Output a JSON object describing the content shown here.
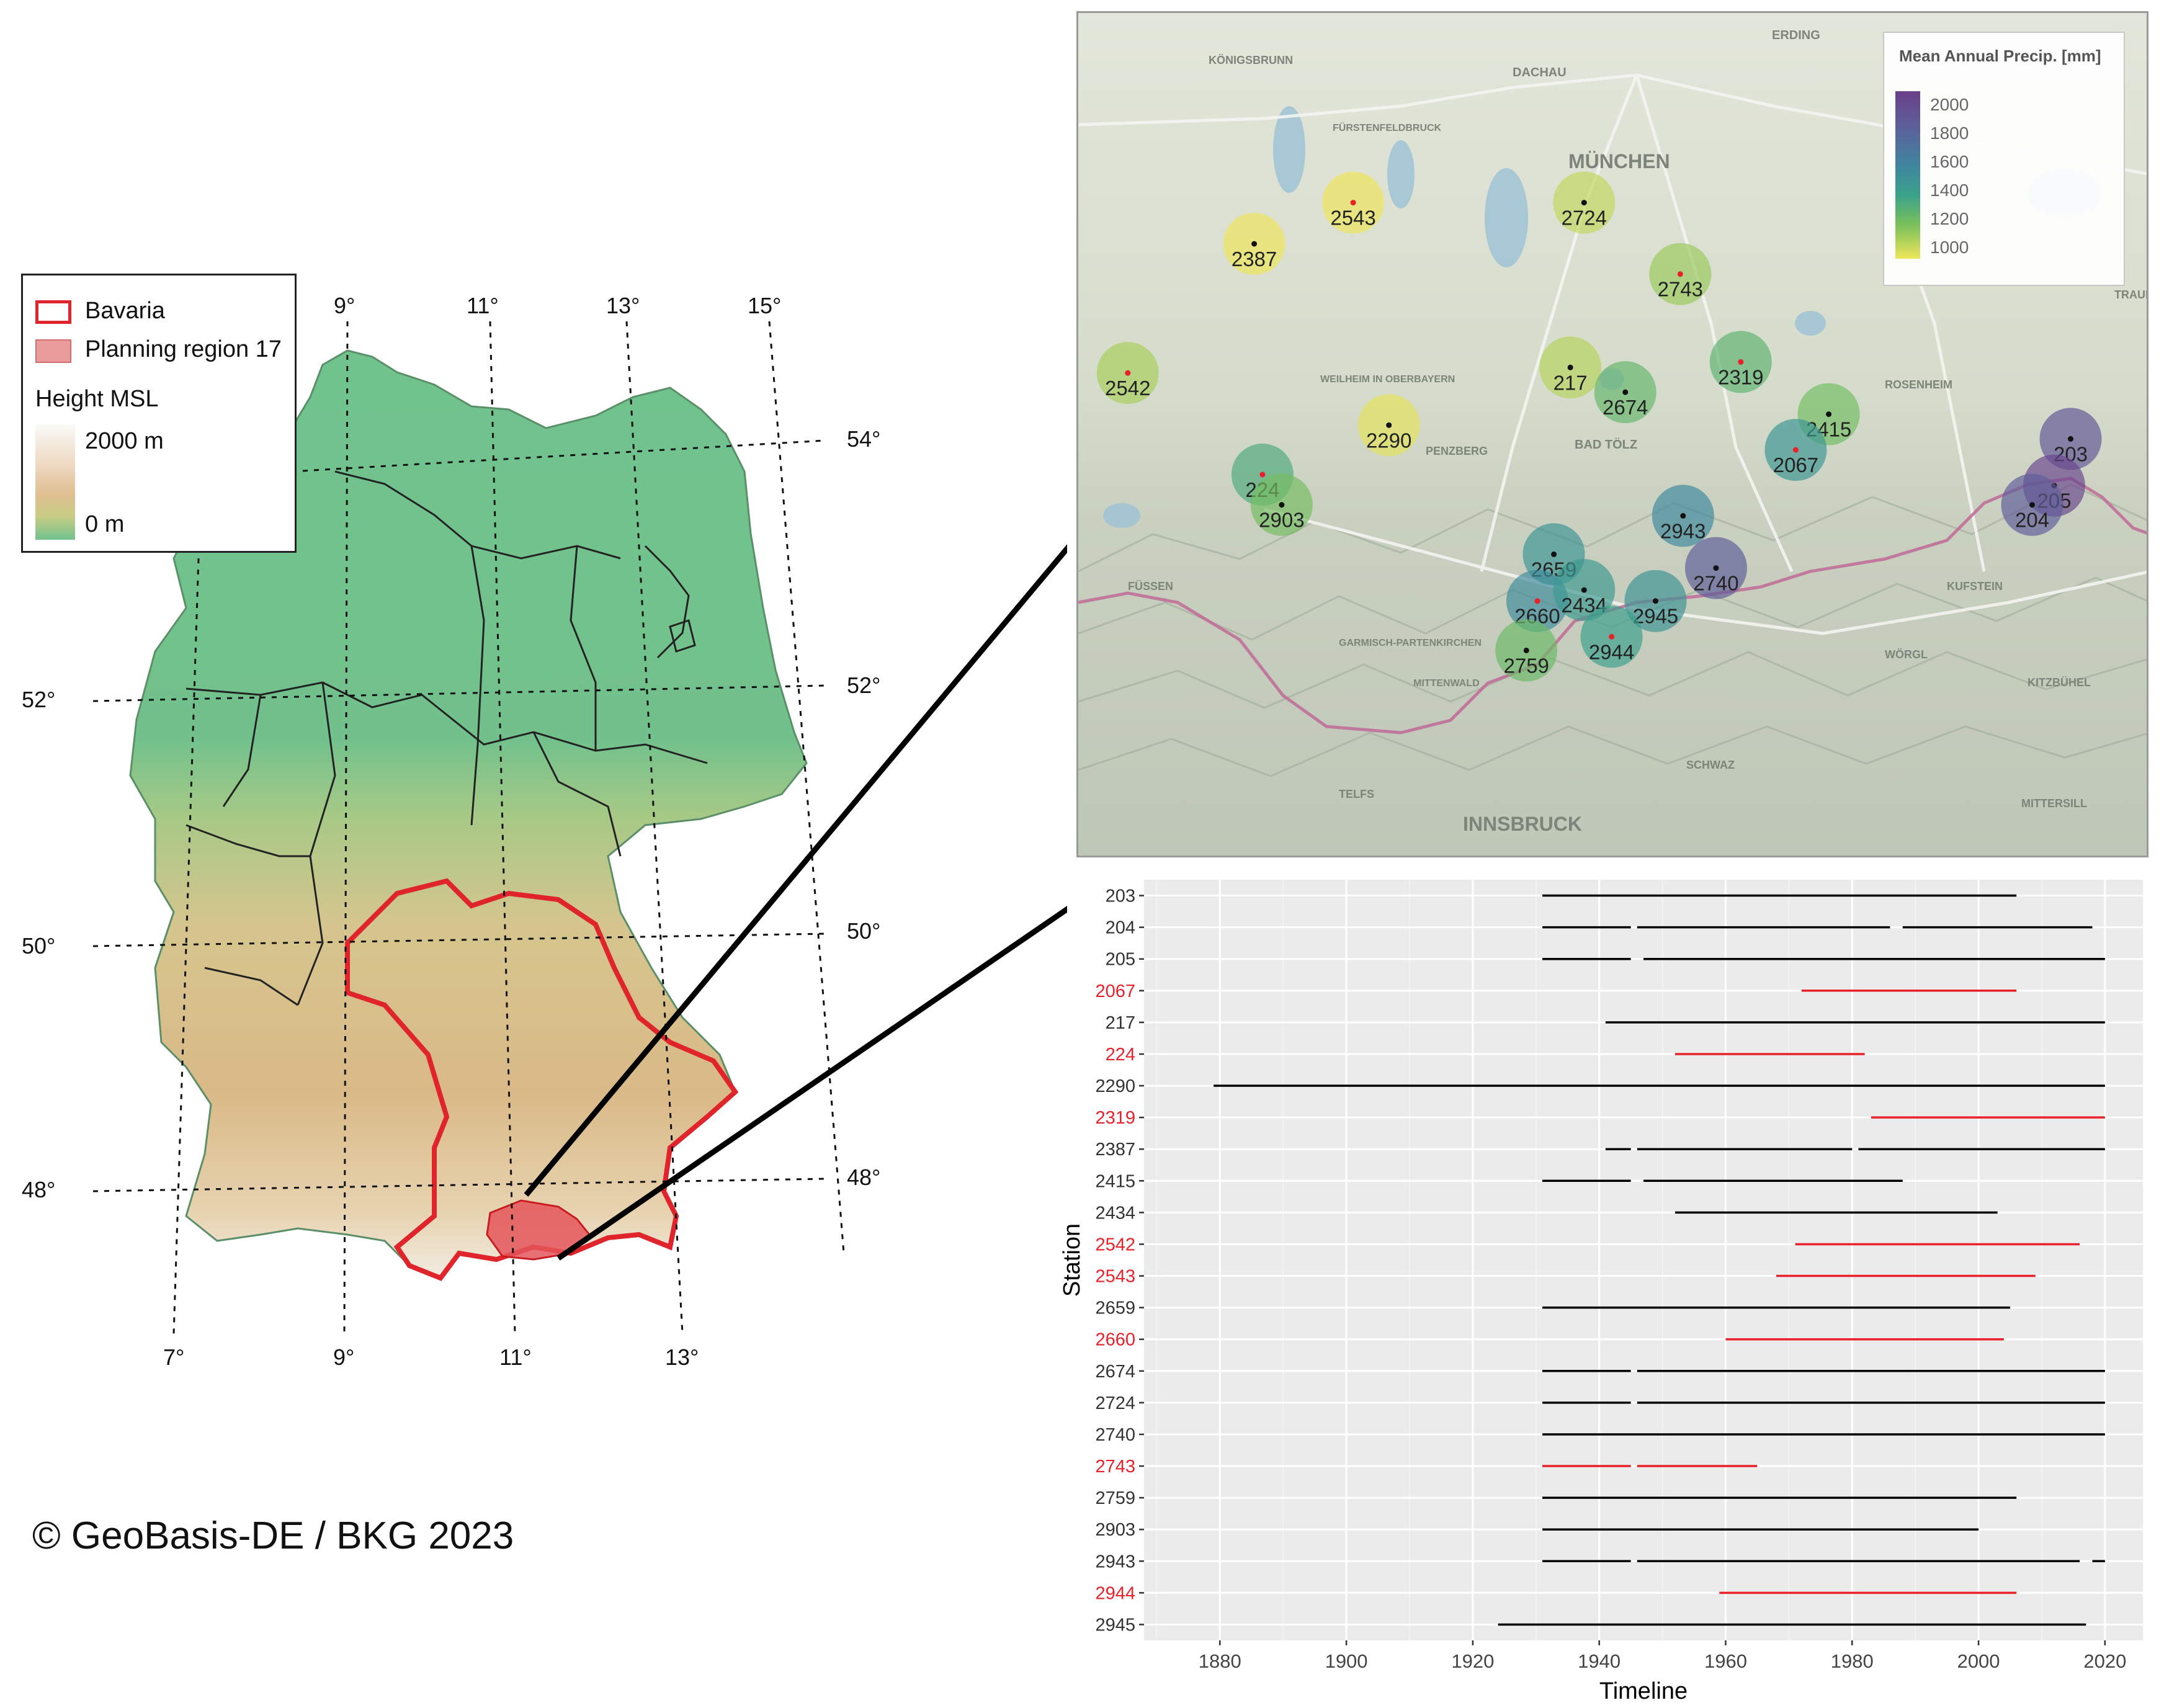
{
  "legend": {
    "bavaria_label": "Bavaria",
    "planning_region_label": "Planning region 17",
    "height_title": "Height MSL",
    "height_max": "2000 m",
    "height_min": "0 m"
  },
  "copyright": "© GeoBasis-DE / BKG 2023",
  "graticule": {
    "top_labels": [
      "9°",
      "11°",
      "13°",
      "15°"
    ],
    "bottom_labels": [
      "7°",
      "9°",
      "11°",
      "13°"
    ],
    "left_labels": [
      "52°",
      "50°",
      "48°"
    ],
    "right_labels": [
      "54°",
      "52°",
      "50°",
      "48°"
    ]
  },
  "inset": {
    "legend_title": "Mean Annual Precip. [mm]",
    "legend_ticks": [
      "2000",
      "1800",
      "1600",
      "1400",
      "1200",
      "1000"
    ],
    "places": [
      "ERDING",
      "DACHAU",
      "MÜNCHEN",
      "INNSBRUCK",
      "KÖNIGSBRUNN",
      "FÜRSTENFELDBRUCK",
      "WEILHEIM IN OBERBAYERN",
      "PENZBERG",
      "BAD TÖLZ",
      "ROSENHEIM",
      "KUFSTEIN",
      "WÖRGL",
      "SCHWAZ",
      "TELFS",
      "FÜSSEN",
      "GARMISCH-PARTENKIRCHEN",
      "MITTENWALD",
      "KITZBÜHEL",
      "MITTERSILL",
      "TRAUNSTEIN"
    ],
    "stations": [
      {
        "id": "2543",
        "precip": 1000,
        "selected": true
      },
      {
        "id": "2387",
        "precip": 950,
        "selected": false
      },
      {
        "id": "2724",
        "precip": 1080,
        "selected": false
      },
      {
        "id": "2743",
        "precip": 1150,
        "selected": true
      },
      {
        "id": "2542",
        "precip": 1120,
        "selected": true
      },
      {
        "id": "217",
        "precip": 1100,
        "selected": false
      },
      {
        "id": "2674",
        "precip": 1270,
        "selected": false
      },
      {
        "id": "2319",
        "precip": 1290,
        "selected": true
      },
      {
        "id": "2290",
        "precip": 1020,
        "selected": false
      },
      {
        "id": "2415",
        "precip": 1230,
        "selected": false
      },
      {
        "id": "2067",
        "precip": 1480,
        "selected": true
      },
      {
        "id": "203",
        "precip": 1850,
        "selected": false
      },
      {
        "id": "205",
        "precip": 1950,
        "selected": false
      },
      {
        "id": "204",
        "precip": 1800,
        "selected": false
      },
      {
        "id": "224",
        "precip": 1340,
        "selected": true
      },
      {
        "id": "2903",
        "precip": 1220,
        "selected": false
      },
      {
        "id": "2943",
        "precip": 1580,
        "selected": false
      },
      {
        "id": "2659",
        "precip": 1500,
        "selected": false
      },
      {
        "id": "2740",
        "precip": 1800,
        "selected": false
      },
      {
        "id": "2660",
        "precip": 1560,
        "selected": true
      },
      {
        "id": "2434",
        "precip": 1460,
        "selected": false
      },
      {
        "id": "2945",
        "precip": 1500,
        "selected": false
      },
      {
        "id": "2944",
        "precip": 1420,
        "selected": true
      },
      {
        "id": "2759",
        "precip": 1250,
        "selected": false
      }
    ]
  },
  "chart_data": {
    "type": "timeline",
    "xlabel": "Timeline",
    "ylabel": "Station",
    "xlim": [
      1868,
      2026
    ],
    "x_ticks": [
      1880,
      1900,
      1920,
      1940,
      1960,
      1980,
      2000,
      2020
    ],
    "highlight_color": "#e8212a",
    "rows": [
      {
        "station": "203",
        "highlight": false,
        "segments": [
          [
            1931,
            2006
          ]
        ]
      },
      {
        "station": "204",
        "highlight": false,
        "segments": [
          [
            1931,
            1945
          ],
          [
            1946,
            1986
          ],
          [
            1988,
            2018
          ]
        ]
      },
      {
        "station": "205",
        "highlight": false,
        "segments": [
          [
            1931,
            1945
          ],
          [
            1947,
            2020
          ]
        ]
      },
      {
        "station": "2067",
        "highlight": true,
        "segments": [
          [
            1972,
            2006
          ]
        ]
      },
      {
        "station": "217",
        "highlight": false,
        "segments": [
          [
            1941,
            2020
          ]
        ]
      },
      {
        "station": "224",
        "highlight": true,
        "segments": [
          [
            1952,
            1982
          ]
        ]
      },
      {
        "station": "2290",
        "highlight": false,
        "segments": [
          [
            1879,
            2020
          ]
        ]
      },
      {
        "station": "2319",
        "highlight": true,
        "segments": [
          [
            1983,
            2020
          ]
        ]
      },
      {
        "station": "2387",
        "highlight": false,
        "segments": [
          [
            1941,
            1945
          ],
          [
            1946,
            1980
          ],
          [
            1981,
            2020
          ]
        ]
      },
      {
        "station": "2415",
        "highlight": false,
        "segments": [
          [
            1931,
            1945
          ],
          [
            1947,
            1988
          ]
        ]
      },
      {
        "station": "2434",
        "highlight": false,
        "segments": [
          [
            1952,
            2003
          ]
        ]
      },
      {
        "station": "2542",
        "highlight": true,
        "segments": [
          [
            1971,
            2016
          ]
        ]
      },
      {
        "station": "2543",
        "highlight": true,
        "segments": [
          [
            1968,
            2009
          ]
        ]
      },
      {
        "station": "2659",
        "highlight": false,
        "segments": [
          [
            1931,
            2005
          ]
        ]
      },
      {
        "station": "2660",
        "highlight": true,
        "segments": [
          [
            1960,
            2004
          ]
        ]
      },
      {
        "station": "2674",
        "highlight": false,
        "segments": [
          [
            1931,
            1945
          ],
          [
            1946,
            2020
          ]
        ]
      },
      {
        "station": "2724",
        "highlight": false,
        "segments": [
          [
            1931,
            1945
          ],
          [
            1946,
            2020
          ]
        ]
      },
      {
        "station": "2740",
        "highlight": false,
        "segments": [
          [
            1931,
            2020
          ]
        ]
      },
      {
        "station": "2743",
        "highlight": true,
        "segments": [
          [
            1931,
            1945
          ],
          [
            1946,
            1965
          ]
        ]
      },
      {
        "station": "2759",
        "highlight": false,
        "segments": [
          [
            1931,
            2006
          ]
        ]
      },
      {
        "station": "2903",
        "highlight": false,
        "segments": [
          [
            1931,
            2000
          ]
        ]
      },
      {
        "station": "2943",
        "highlight": false,
        "segments": [
          [
            1931,
            1945
          ],
          [
            1946,
            2016
          ],
          [
            2018,
            2020
          ]
        ]
      },
      {
        "station": "2944",
        "highlight": true,
        "segments": [
          [
            1959,
            2006
          ]
        ]
      },
      {
        "station": "2945",
        "highlight": false,
        "segments": [
          [
            1924,
            2017
          ]
        ]
      }
    ]
  }
}
